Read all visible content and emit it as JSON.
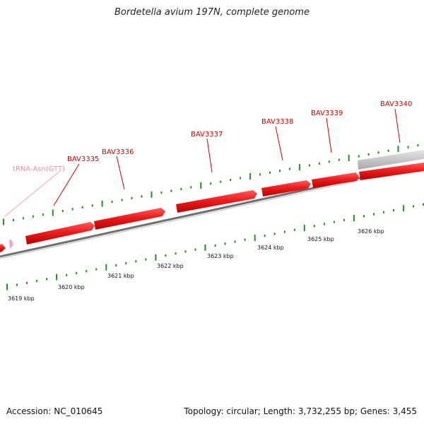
{
  "title": "Bordetella avium 197N, complete genome",
  "footer": {
    "accession": "Accession: NC_010645",
    "summary": "Topology: circular; Length: 3,732,255 bp; Genes: 3,455"
  },
  "colors": {
    "gene": "#e8141a",
    "gene_label": "#d00000",
    "trna": "#f5a3c0",
    "backbone": "#7a7a7a",
    "tick": "#2a8a2a",
    "grey_feature": "#c8c8c8"
  },
  "features": [
    {
      "name": "tRNA-Asn(GTT)",
      "kind": "trna"
    },
    {
      "name": "BAV3335",
      "kind": "gene"
    },
    {
      "name": "BAV3336",
      "kind": "gene"
    },
    {
      "name": "BAV3337",
      "kind": "gene"
    },
    {
      "name": "BAV3338",
      "kind": "gene"
    },
    {
      "name": "BAV3339",
      "kind": "gene"
    },
    {
      "name": "BAV3340",
      "kind": "gene"
    }
  ],
  "scale_labels": [
    "3619 kbp",
    "3620 kbp",
    "3621 kbp",
    "3622 kbp",
    "3623 kbp",
    "3624 kbp",
    "3625 kbp",
    "3626 kbp"
  ]
}
